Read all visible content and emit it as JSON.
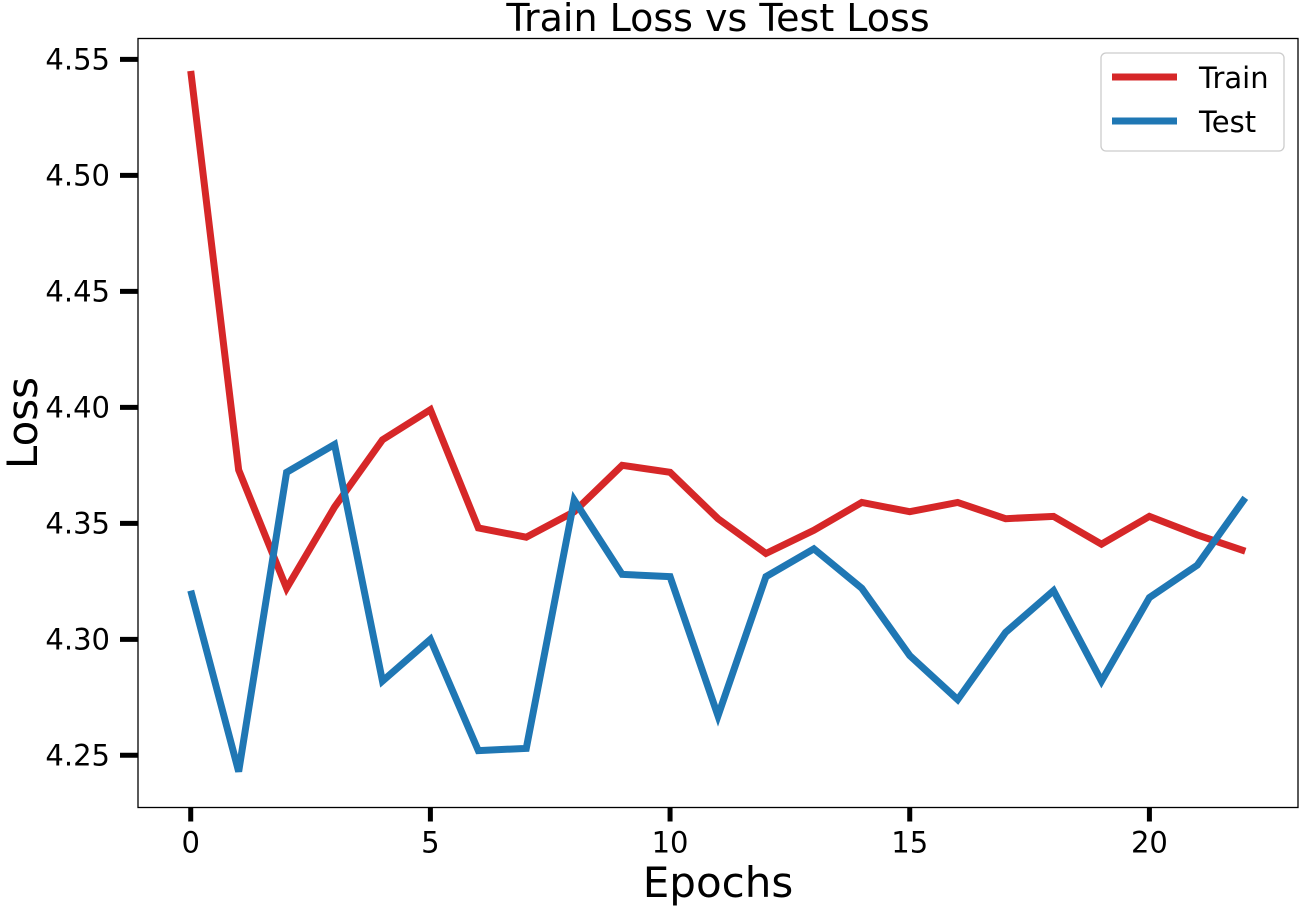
{
  "chart_data": {
    "type": "line",
    "title": "Train Loss vs Test Loss",
    "xlabel": "Epochs",
    "ylabel": "Loss",
    "xlim": [
      -1.1,
      23.1
    ],
    "ylim": [
      4.2275,
      4.559
    ],
    "xticks": [
      0,
      5,
      10,
      15,
      20
    ],
    "xtick_labels": [
      "0",
      "5",
      "10",
      "15",
      "20"
    ],
    "yticks": [
      4.25,
      4.3,
      4.35,
      4.4,
      4.45,
      4.5,
      4.55
    ],
    "ytick_labels": [
      "4.25",
      "4.30",
      "4.35",
      "4.40",
      "4.45",
      "4.50",
      "4.55"
    ],
    "grid": false,
    "legend_position": "top-right",
    "x": [
      0,
      1,
      2,
      3,
      4,
      5,
      6,
      7,
      8,
      9,
      10,
      11,
      12,
      13,
      14,
      15,
      16,
      17,
      18,
      19,
      20,
      21,
      22
    ],
    "series": [
      {
        "name": "Train",
        "color": "#d62728",
        "values": [
          4.545,
          4.373,
          4.322,
          4.357,
          4.386,
          4.399,
          4.348,
          4.344,
          4.355,
          4.375,
          4.372,
          4.352,
          4.337,
          4.347,
          4.359,
          4.355,
          4.359,
          4.352,
          4.353,
          4.341,
          4.353,
          4.345,
          4.338
        ]
      },
      {
        "name": "Test",
        "color": "#1f77b4",
        "values": [
          4.321,
          4.243,
          4.372,
          4.384,
          4.282,
          4.3,
          4.252,
          4.253,
          4.36,
          4.328,
          4.327,
          4.267,
          4.327,
          4.339,
          4.322,
          4.293,
          4.274,
          4.303,
          4.321,
          4.282,
          4.318,
          4.332,
          4.361
        ]
      }
    ]
  }
}
